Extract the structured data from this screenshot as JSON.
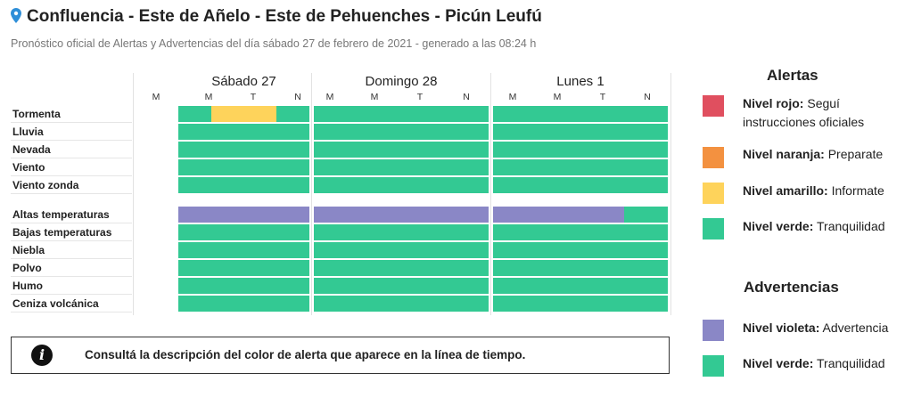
{
  "header": {
    "title": "Confluencia - Este de Añelo - Este de Pehuenches - Picún Leufú",
    "subtitle": "Pronóstico oficial de Alertas y Advertencias del día sábado 27 de febrero de 2021 - generado a las 08:24 h",
    "pin_icon": "location-pin-icon"
  },
  "timeline": {
    "days": [
      {
        "label": "Sábado 27",
        "slots": [
          "M",
          "M",
          "T",
          "N"
        ]
      },
      {
        "label": "Domingo 28",
        "slots": [
          "M",
          "M",
          "T",
          "N"
        ]
      },
      {
        "label": "Lunes 1",
        "slots": [
          "M",
          "M",
          "T",
          "N"
        ]
      }
    ],
    "pre_slot": "M",
    "colors": {
      "green": "#33c993",
      "yellow": "#fed35b",
      "violet": "#8a87c6",
      "red": "#e04f5f",
      "orange": "#f39140"
    },
    "rows": [
      {
        "label": "Tormenta",
        "levels": [
          "green",
          "yellow",
          "yellow",
          "green",
          "green",
          "green",
          "green",
          "green",
          "green",
          "green",
          "green",
          "green"
        ]
      },
      {
        "label": "Lluvia",
        "levels": [
          "green",
          "green",
          "green",
          "green",
          "green",
          "green",
          "green",
          "green",
          "green",
          "green",
          "green",
          "green"
        ]
      },
      {
        "label": "Nevada",
        "levels": [
          "green",
          "green",
          "green",
          "green",
          "green",
          "green",
          "green",
          "green",
          "green",
          "green",
          "green",
          "green"
        ]
      },
      {
        "label": "Viento",
        "levels": [
          "green",
          "green",
          "green",
          "green",
          "green",
          "green",
          "green",
          "green",
          "green",
          "green",
          "green",
          "green"
        ]
      },
      {
        "label": "Viento zonda",
        "levels": [
          "green",
          "green",
          "green",
          "green",
          "green",
          "green",
          "green",
          "green",
          "green",
          "green",
          "green",
          "green"
        ]
      },
      {
        "label": "Altas temperaturas",
        "levels": [
          "violet",
          "violet",
          "violet",
          "violet",
          "violet",
          "violet",
          "violet",
          "violet",
          "violet",
          "violet",
          "violet",
          "green"
        ]
      },
      {
        "label": "Bajas temperaturas",
        "levels": [
          "green",
          "green",
          "green",
          "green",
          "green",
          "green",
          "green",
          "green",
          "green",
          "green",
          "green",
          "green"
        ]
      },
      {
        "label": "Niebla",
        "levels": [
          "green",
          "green",
          "green",
          "green",
          "green",
          "green",
          "green",
          "green",
          "green",
          "green",
          "green",
          "green"
        ]
      },
      {
        "label": "Polvo",
        "levels": [
          "green",
          "green",
          "green",
          "green",
          "green",
          "green",
          "green",
          "green",
          "green",
          "green",
          "green",
          "green"
        ]
      },
      {
        "label": "Humo",
        "levels": [
          "green",
          "green",
          "green",
          "green",
          "green",
          "green",
          "green",
          "green",
          "green",
          "green",
          "green",
          "green"
        ]
      },
      {
        "label": "Ceniza volcánica",
        "levels": [
          "green",
          "green",
          "green",
          "green",
          "green",
          "green",
          "green",
          "green",
          "green",
          "green",
          "green",
          "green"
        ]
      }
    ]
  },
  "notice": {
    "icon": "info-icon",
    "text": "Consultá la descripción del color de alerta que aparece en la línea de tiempo."
  },
  "legend": {
    "alertas_title": "Alertas",
    "alertas": [
      {
        "level": "Nivel rojo:",
        "desc": "Seguí instrucciones oficiales",
        "color": "#e04f5f"
      },
      {
        "level": "Nivel naranja:",
        "desc": "Preparate",
        "color": "#f39140"
      },
      {
        "level": "Nivel amarillo:",
        "desc": "Informate",
        "color": "#fed35b"
      },
      {
        "level": "Nivel verde:",
        "desc": "Tranquilidad",
        "color": "#33c993"
      }
    ],
    "advertencias_title": "Advertencias",
    "advertencias": [
      {
        "level": "Nivel violeta:",
        "desc": "Advertencia",
        "color": "#8a87c6"
      },
      {
        "level": "Nivel verde:",
        "desc": "Tranquilidad",
        "color": "#33c993"
      }
    ]
  }
}
